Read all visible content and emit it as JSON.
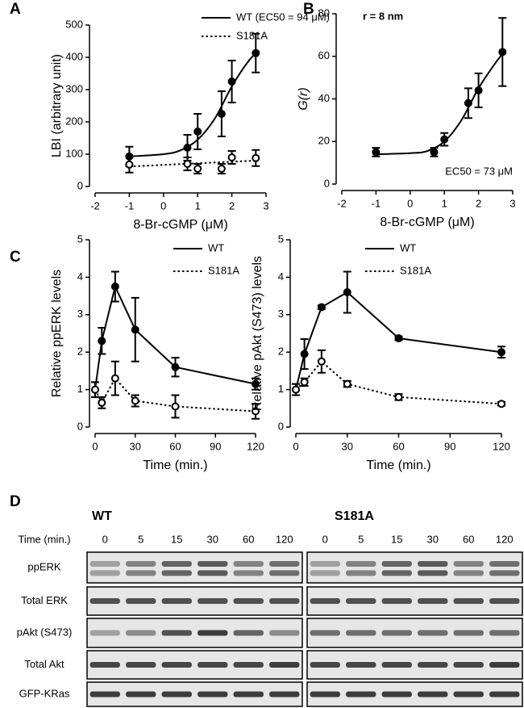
{
  "chart_data": [
    {
      "label": "A",
      "type": "line",
      "xlabel": "8-Br-cGMP (μM)",
      "ylabel": "LBI (arbitrary unit)",
      "xlim": [
        -2,
        3
      ],
      "xticks": [
        -2,
        -1,
        0,
        1,
        2,
        3
      ],
      "ylim": [
        0,
        500
      ],
      "yticks": [
        0,
        100,
        200,
        300,
        400,
        500
      ],
      "series": [
        {
          "name": "WT (EC50 = 94 μM)",
          "color": "#000000",
          "line_style": "solid",
          "marker": "filled",
          "x": [
            -1,
            0.7,
            1,
            1.7,
            2,
            2.7
          ],
          "values": [
            93,
            120,
            170,
            225,
            325,
            413
          ],
          "errors": [
            30,
            40,
            55,
            70,
            65,
            60
          ],
          "fit_x": [
            -1,
            0,
            0.5,
            1,
            1.5,
            2,
            2.5,
            2.8
          ],
          "fit_y": [
            93,
            100,
            112,
            145,
            210,
            310,
            390,
            420
          ]
        },
        {
          "name": "S181A",
          "color": "#000000",
          "line_style": "dotted",
          "marker": "open",
          "x": [
            -1,
            0.7,
            1,
            1.7,
            2,
            2.7
          ],
          "values": [
            68,
            70,
            55,
            55,
            90,
            88
          ],
          "errors": [
            25,
            20,
            15,
            15,
            20,
            25
          ],
          "fit_x": [
            -1,
            2.7
          ],
          "fit_y": [
            62,
            80
          ]
        }
      ]
    },
    {
      "label": "B",
      "type": "line",
      "xlabel": "8-Br-cGMP (μM)",
      "ylabel": "G(r)",
      "xlim": [
        -2,
        3
      ],
      "xticks": [
        -2,
        -1,
        0,
        1,
        2,
        3
      ],
      "ylim": [
        0,
        80
      ],
      "yticks": [
        0,
        20,
        40,
        60,
        80
      ],
      "annotations": [
        "r = 8 nm",
        "EC50 = 73 μM"
      ],
      "series": [
        {
          "color": "#000000",
          "line_style": "solid",
          "marker": "filled",
          "x": [
            -1,
            0.7,
            1,
            1.7,
            2,
            2.7
          ],
          "values": [
            15,
            15,
            21,
            38,
            44,
            62
          ],
          "errors": [
            2,
            2,
            3,
            7,
            8,
            16
          ],
          "fit_x": [
            -1,
            0,
            0.5,
            1,
            1.5,
            2,
            2.5,
            2.8
          ],
          "fit_y": [
            14,
            14.5,
            15.5,
            20,
            30,
            45,
            57,
            63
          ]
        }
      ]
    },
    {
      "label": "C",
      "type": "line",
      "xlabel": "Time (min.)",
      "ylabel": "Relative ppERK levels",
      "xlim": [
        0,
        120
      ],
      "xticks": [
        0,
        30,
        60,
        90,
        120
      ],
      "ylim": [
        0,
        5
      ],
      "yticks": [
        0,
        1,
        2,
        3,
        4,
        5
      ],
      "series": [
        {
          "name": "WT",
          "color": "#000000",
          "line_style": "solid",
          "marker": "filled",
          "x": [
            0,
            5,
            15,
            30,
            60,
            120
          ],
          "values": [
            1,
            2.3,
            3.75,
            2.6,
            1.6,
            1.15
          ],
          "errors": [
            0.2,
            0.35,
            0.4,
            0.85,
            0.25,
            0.15
          ]
        },
        {
          "name": "S181A",
          "color": "#000000",
          "line_style": "dotted",
          "marker": "open",
          "x": [
            0,
            5,
            15,
            30,
            60,
            120
          ],
          "values": [
            1,
            0.65,
            1.3,
            0.7,
            0.55,
            0.42
          ],
          "errors": [
            0.2,
            0.15,
            0.45,
            0.15,
            0.3,
            0.2
          ]
        }
      ]
    },
    {
      "type": "line",
      "xlabel": "Time (min.)",
      "ylabel": "Relative pAkt (S473) levels",
      "xlim": [
        0,
        120
      ],
      "xticks": [
        0,
        30,
        60,
        90,
        120
      ],
      "ylim": [
        0,
        5
      ],
      "yticks": [
        0,
        1,
        2,
        3,
        4,
        5
      ],
      "series": [
        {
          "name": "WT",
          "color": "#000000",
          "line_style": "solid",
          "marker": "filled",
          "x": [
            0,
            5,
            15,
            30,
            60,
            120
          ],
          "values": [
            1,
            1.95,
            3.2,
            3.6,
            2.37,
            2.0
          ],
          "errors": [
            0.15,
            0.4,
            0.05,
            0.55,
            0.05,
            0.15
          ]
        },
        {
          "name": "S181A",
          "color": "#000000",
          "line_style": "dotted",
          "marker": "open",
          "x": [
            0,
            5,
            15,
            30,
            60,
            120
          ],
          "values": [
            1,
            1.2,
            1.75,
            1.15,
            0.8,
            0.62
          ],
          "errors": [
            0.15,
            0.1,
            0.3,
            0.08,
            0.08,
            0.05
          ]
        }
      ]
    }
  ],
  "blot": {
    "label": "D",
    "groups": [
      "WT",
      "S181A"
    ],
    "time_label": "Time (min.)",
    "times": [
      0,
      5,
      15,
      30,
      60,
      120
    ],
    "rows": [
      "ppERK",
      "Total ERK",
      "pAkt (S473)",
      "Total Akt",
      "GFP-KRas"
    ]
  }
}
